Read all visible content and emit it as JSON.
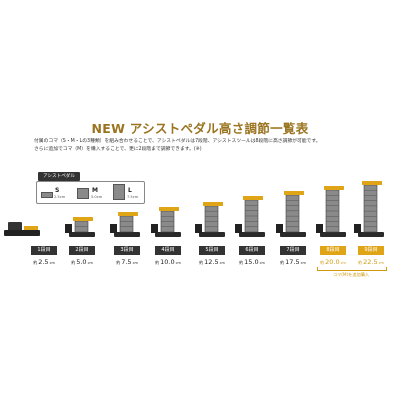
{
  "title": "NEW アシストペダル高さ調節一覧表",
  "intro": {
    "line1": "付属のコマ（S・M・Lの3種類）を組み合わせることで、アシストペダルは7段階、アシストスツールは8段階に高さ調節が可能です。",
    "line2": "さらに追加でコマ（M）を購入することで、更に2段階まで調節できます。",
    "line2_note": "(※)"
  },
  "assist_pedal_tag": "アシストペダル",
  "koma": [
    {
      "size": "S",
      "dim": "2.5cm"
    },
    {
      "size": "M",
      "dim": "5.0cm"
    },
    {
      "size": "L",
      "dim": "7.5cm"
    }
  ],
  "height_prefix": "約",
  "height_unit": "cm",
  "levels": [
    {
      "label": "1段目",
      "height": "2.5",
      "extra": false
    },
    {
      "label": "2段目",
      "height": "5.0",
      "extra": false
    },
    {
      "label": "3段目",
      "height": "7.5",
      "extra": false
    },
    {
      "label": "4段目",
      "height": "10.0",
      "extra": false
    },
    {
      "label": "5段目",
      "height": "12.5",
      "extra": false
    },
    {
      "label": "6段目",
      "height": "15.0",
      "extra": false
    },
    {
      "label": "7段目",
      "height": "17.5",
      "extra": false
    },
    {
      "label": "8段目",
      "height": "20.0",
      "extra": true
    },
    {
      "label": "9段目",
      "height": "22.5",
      "extra": true
    }
  ],
  "extra_note": "コマ(M)を追加購入",
  "colors": {
    "gold": "#e0a417",
    "title_gold": "#9a7420",
    "dark": "#333333",
    "block_gray": "#8a8a8a"
  }
}
